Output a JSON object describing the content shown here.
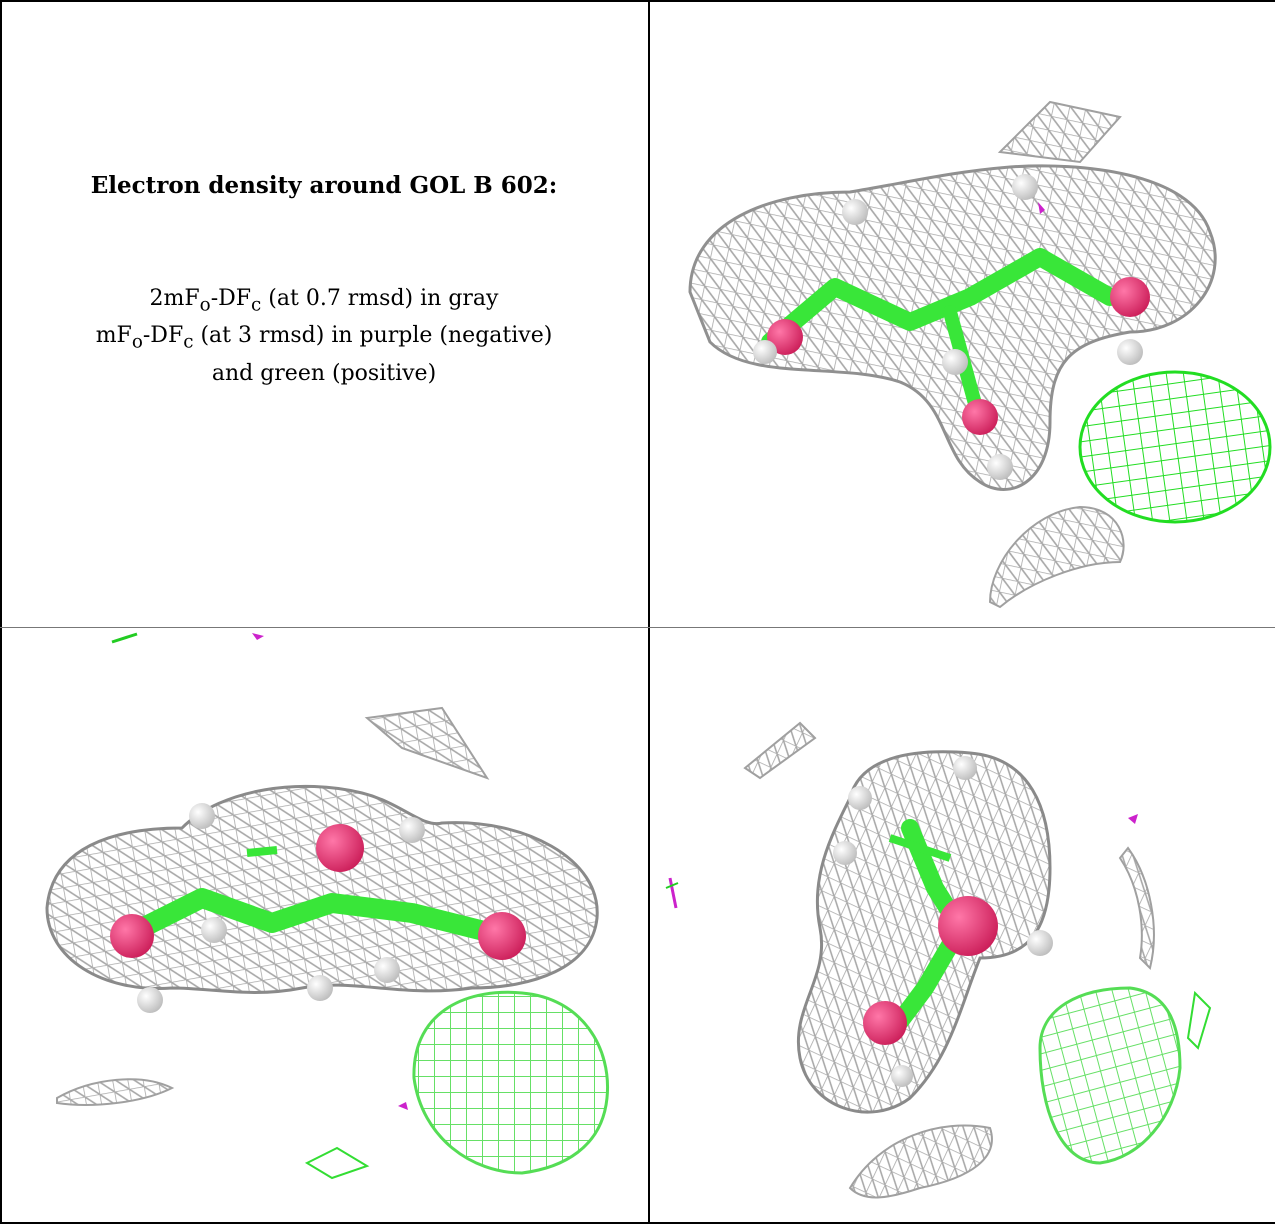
{
  "legend": {
    "title": "Electron density around GOL B 602:",
    "line1": {
      "prefix": "2mF",
      "sub1": "o",
      "mid": "-DF",
      "sub2": "c",
      "suffix": " (at 0.7 rmsd) in gray"
    },
    "line2": {
      "prefix": "mF",
      "sub1": "o",
      "mid": "-DF",
      "sub2": "c",
      "suffix": " (at 3 rmsd) in purple (negative)"
    },
    "line3": "and green (positive)"
  },
  "colors": {
    "map_2fofc": "#9e9e9e",
    "map_positive": "#33dd33",
    "map_negative": "#cc22cc",
    "carbon": "#39e639",
    "oxygen": "#e8306e",
    "hydrogen": "#e6e6e6"
  },
  "panels": [
    {
      "name": "view-1",
      "molecule": "GOL B 602"
    },
    {
      "name": "view-2",
      "molecule": "GOL B 602"
    },
    {
      "name": "view-3",
      "molecule": "GOL B 602"
    }
  ]
}
